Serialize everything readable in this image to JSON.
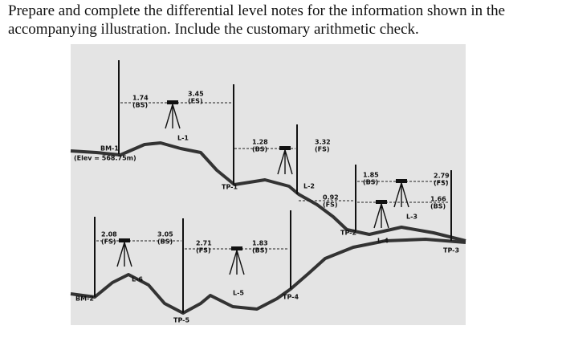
{
  "question": "Prepare and complete the differential level notes for the information shown in the accompanying illustration. Include the customary arithmetic check.",
  "diagram": {
    "benchmarks": [
      {
        "name": "BM-1",
        "elevation": "(Elev = 568.75m)"
      },
      {
        "name": "BM-2"
      }
    ],
    "turning_points": [
      "TP-1",
      "TP-2",
      "TP-3",
      "TP-4",
      "TP-5"
    ],
    "instruments": [
      "L-1",
      "L-2",
      "L-3",
      "L-4",
      "L-5",
      "L-6"
    ],
    "readings": [
      {
        "value": "1.74",
        "kind": "(BS)"
      },
      {
        "value": "3.45",
        "kind": "(FS)"
      },
      {
        "value": "1.28",
        "kind": "(BS)"
      },
      {
        "value": "3.32",
        "kind": "(FS)"
      },
      {
        "value": "1.85",
        "kind": "(BS)"
      },
      {
        "value": "2.79",
        "kind": "(FS)"
      },
      {
        "value": "0.92",
        "kind": "(FS)"
      },
      {
        "value": "1.66",
        "kind": "(BS)"
      },
      {
        "value": "2.08",
        "kind": "(FS)"
      },
      {
        "value": "3.05",
        "kind": "(BS)"
      },
      {
        "value": "2.71",
        "kind": "(FS)"
      },
      {
        "value": "1.83",
        "kind": "(BS)"
      }
    ]
  }
}
